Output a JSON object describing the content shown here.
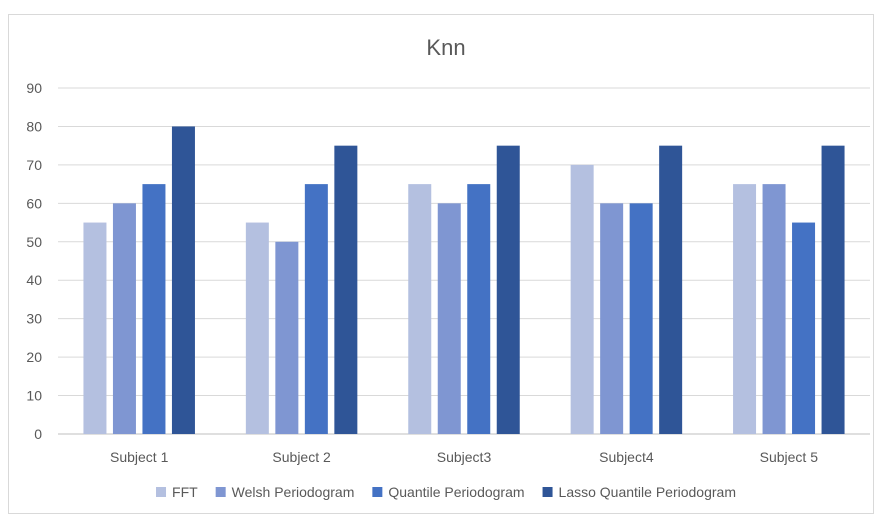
{
  "chart_data": {
    "type": "bar",
    "title": "Knn",
    "xlabel": "",
    "ylabel": "",
    "categories": [
      "Subject 1",
      "Subject 2",
      "Subject3",
      "Subject4",
      "Subject 5"
    ],
    "ylim": [
      0,
      90
    ],
    "yticks": [
      0,
      10,
      20,
      30,
      40,
      50,
      60,
      70,
      80,
      90
    ],
    "grid": true,
    "legend_position": "bottom",
    "series": [
      {
        "name": "FFT",
        "color": "#b4c0e0",
        "values": [
          55,
          55,
          65,
          70,
          65
        ]
      },
      {
        "name": "Welsh Periodogram",
        "color": "#7f96d2",
        "values": [
          60,
          50,
          60,
          60,
          65
        ]
      },
      {
        "name": "Quantile Periodogram",
        "color": "#4472c4",
        "values": [
          65,
          65,
          65,
          60,
          55
        ]
      },
      {
        "name": "Lasso Quantile Periodogram",
        "color": "#2f5597",
        "values": [
          80,
          75,
          75,
          75,
          75
        ]
      }
    ]
  }
}
